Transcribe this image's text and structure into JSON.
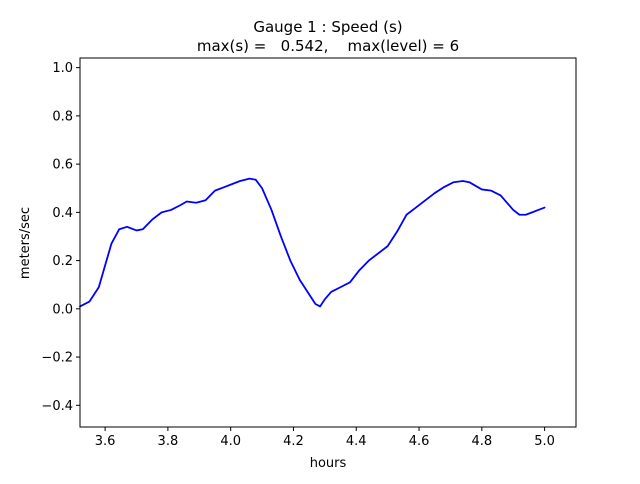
{
  "chart_data": {
    "type": "line",
    "title_line1": "Gauge 1 : Speed (s)",
    "title_line2": "max(s) =   0.542,    max(level) = 6",
    "xlabel": "hours",
    "ylabel": "meters/sec",
    "xlim": [
      3.52,
      5.1
    ],
    "ylim": [
      -0.49,
      1.04
    ],
    "x_ticks": [
      3.6,
      3.8,
      4.0,
      4.2,
      4.4,
      4.6,
      4.8,
      5.0
    ],
    "x_tick_labels": [
      "3.6",
      "3.8",
      "4.0",
      "4.2",
      "4.4",
      "4.6",
      "4.8",
      "5.0"
    ],
    "y_ticks": [
      -0.4,
      -0.2,
      0.0,
      0.2,
      0.4,
      0.6,
      0.8,
      1.0
    ],
    "y_tick_labels": [
      "−0.4",
      "−0.2",
      "0.0",
      "0.2",
      "0.4",
      "0.6",
      "0.8",
      "1.0"
    ],
    "grid": false,
    "series": [
      {
        "color": "#0000ff",
        "x": [
          3.52,
          3.55,
          3.58,
          3.6,
          3.62,
          3.645,
          3.67,
          3.7,
          3.72,
          3.75,
          3.78,
          3.81,
          3.84,
          3.86,
          3.89,
          3.92,
          3.95,
          3.98,
          4.0,
          4.03,
          4.06,
          4.08,
          4.1,
          4.13,
          4.16,
          4.19,
          4.22,
          4.25,
          4.27,
          4.285,
          4.3,
          4.32,
          4.35,
          4.38,
          4.41,
          4.44,
          4.47,
          4.5,
          4.53,
          4.56,
          4.59,
          4.62,
          4.65,
          4.68,
          4.71,
          4.74,
          4.76,
          4.78,
          4.8,
          4.83,
          4.86,
          4.88,
          4.9,
          4.92,
          4.94,
          4.96,
          4.98,
          5.0
        ],
        "y": [
          0.01,
          0.03,
          0.09,
          0.18,
          0.27,
          0.33,
          0.34,
          0.325,
          0.33,
          0.37,
          0.4,
          0.41,
          0.43,
          0.445,
          0.44,
          0.45,
          0.49,
          0.505,
          0.515,
          0.53,
          0.54,
          0.535,
          0.5,
          0.41,
          0.3,
          0.2,
          0.12,
          0.06,
          0.02,
          0.01,
          0.04,
          0.07,
          0.09,
          0.11,
          0.16,
          0.2,
          0.23,
          0.26,
          0.32,
          0.39,
          0.42,
          0.45,
          0.48,
          0.505,
          0.525,
          0.53,
          0.525,
          0.51,
          0.495,
          0.49,
          0.47,
          0.44,
          0.41,
          0.39,
          0.39,
          0.4,
          0.41,
          0.42
        ]
      }
    ]
  }
}
